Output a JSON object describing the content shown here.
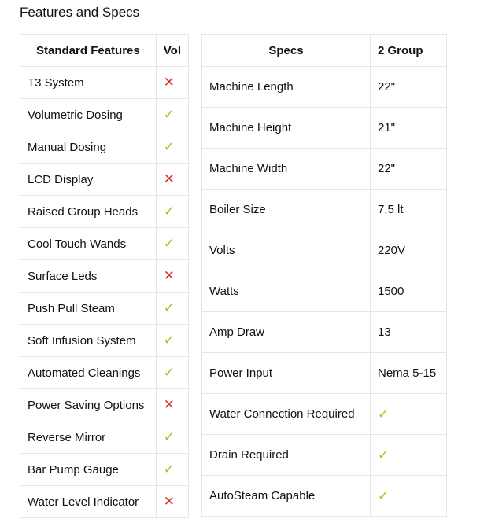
{
  "title": "Features and Specs",
  "colors": {
    "check": "#a3c61a",
    "cross": "#d9342b"
  },
  "features": {
    "headers": [
      "Standard Features",
      "Vol"
    ],
    "rows": [
      {
        "name": "T3 System",
        "vol": false
      },
      {
        "name": "Volumetric Dosing",
        "vol": true
      },
      {
        "name": "Manual Dosing",
        "vol": true
      },
      {
        "name": "LCD Display",
        "vol": false
      },
      {
        "name": "Raised Group Heads",
        "vol": true
      },
      {
        "name": "Cool Touch Wands",
        "vol": true
      },
      {
        "name": "Surface Leds",
        "vol": false
      },
      {
        "name": "Push Pull Steam",
        "vol": true
      },
      {
        "name": "Soft Infusion System",
        "vol": true
      },
      {
        "name": "Automated Cleanings",
        "vol": true
      },
      {
        "name": "Power Saving Options",
        "vol": false
      },
      {
        "name": "Reverse Mirror",
        "vol": true
      },
      {
        "name": "Bar Pump Gauge",
        "vol": true
      },
      {
        "name": "Water Level Indicator",
        "vol": false
      }
    ]
  },
  "specs": {
    "headers": [
      "Specs",
      "2 Group"
    ],
    "rows": [
      {
        "name": "Machine Length",
        "value": "22\""
      },
      {
        "name": "Machine Height",
        "value": "21\""
      },
      {
        "name": "Machine Width",
        "value": "22\""
      },
      {
        "name": "Boiler Size",
        "value": "7.5 lt"
      },
      {
        "name": "Volts",
        "value": "220V"
      },
      {
        "name": "Watts",
        "value": "1500"
      },
      {
        "name": "Amp Draw",
        "value": "13"
      },
      {
        "name": "Power Input",
        "value": "Nema 5-15"
      },
      {
        "name": "Water Connection Required",
        "check": true
      },
      {
        "name": "Drain Required",
        "check": true
      },
      {
        "name": "AutoSteam Capable",
        "check": true
      }
    ]
  }
}
